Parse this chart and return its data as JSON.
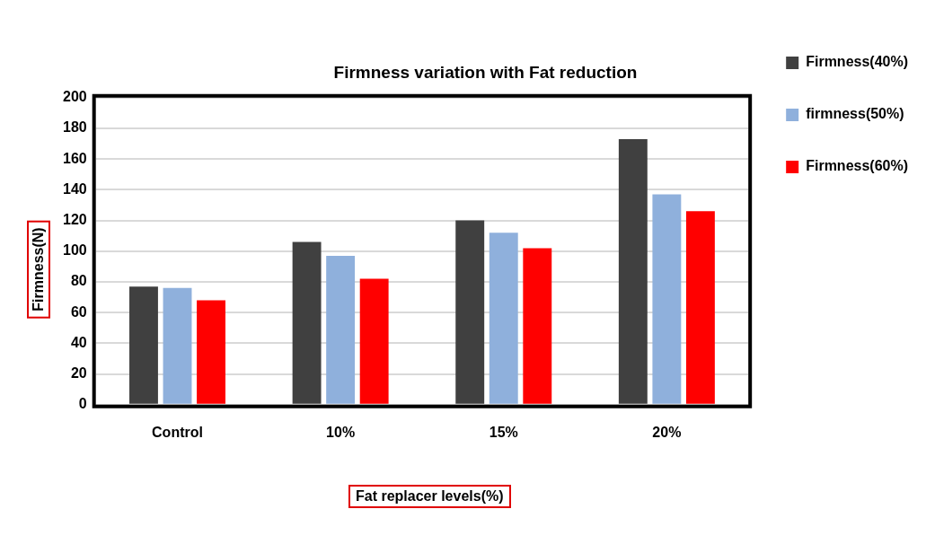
{
  "chart_data": {
    "type": "bar",
    "title": "Firmness variation with Fat reduction",
    "xlabel": "Fat replacer levels(%)",
    "ylabel": "Firmness(N)",
    "categories": [
      "Control",
      "10%",
      "15%",
      "20%"
    ],
    "series": [
      {
        "name": "Firmness(40%)",
        "color": "#404040",
        "values": [
          77,
          106,
          120,
          173
        ]
      },
      {
        "name": "firmness(50%)",
        "color": "#8fb0dc",
        "values": [
          76,
          97,
          112,
          137
        ]
      },
      {
        "name": "Firmness(60%)",
        "color": "#ff0000",
        "values": [
          68,
          82,
          102,
          126
        ]
      }
    ],
    "ylim": [
      0,
      200
    ],
    "yticks": [
      0,
      20,
      40,
      60,
      80,
      100,
      120,
      140,
      160,
      180,
      200
    ],
    "grid": "y",
    "legend": "top right"
  }
}
